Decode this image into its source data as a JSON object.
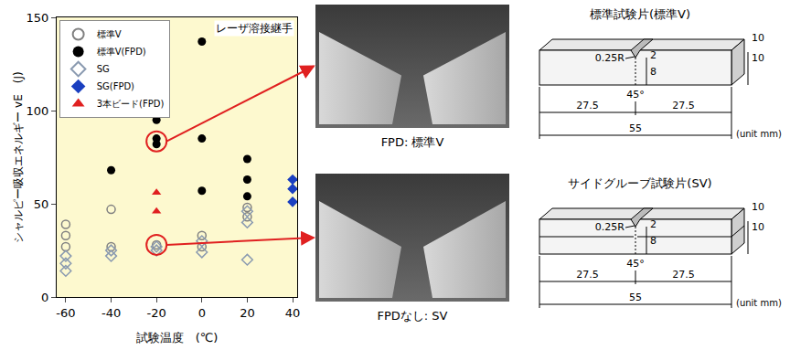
{
  "chart_data": {
    "type": "scatter",
    "x_label": "試験温度　(℃)",
    "y_label": "シャルピー吸収エネルギー vE",
    "y_unit": "(J)",
    "annotation": "レーザ溶接継手",
    "xlim": [
      -64,
      42
    ],
    "xticks": [
      -60,
      -40,
      -20,
      0,
      20,
      40
    ],
    "ylim": [
      0,
      150
    ],
    "yticks": [
      0,
      50,
      100,
      150
    ],
    "grid": false,
    "legend": "upper left",
    "series": [
      {
        "name": "標準V",
        "color": "#808080",
        "marker": "circle-open",
        "x": [
          -60,
          -60,
          -60,
          -40,
          -40,
          -20,
          0,
          0,
          20,
          20
        ],
        "values": [
          39,
          33,
          27,
          47,
          27,
          28,
          33,
          27,
          48,
          43
        ]
      },
      {
        "name": "標準V(FPD)",
        "color": "#000000",
        "marker": "circle",
        "x": [
          -40,
          -20,
          -20,
          -20,
          0,
          0,
          0,
          20,
          20,
          20
        ],
        "values": [
          68,
          95,
          85,
          82,
          137,
          85,
          57,
          74,
          63,
          54
        ]
      },
      {
        "name": "SG",
        "color": "#8a9ab0",
        "marker": "diamond-open",
        "x": [
          -60,
          -60,
          -60,
          -40,
          -40,
          -20,
          -20,
          0,
          0,
          20,
          20,
          20
        ],
        "values": [
          22,
          18,
          14,
          25,
          22,
          27,
          25,
          30,
          24,
          46,
          40,
          20
        ]
      },
      {
        "name": "SG(FPD)",
        "color": "#1a3fc0",
        "marker": "diamond",
        "x": [
          40,
          40,
          40
        ],
        "values": [
          63,
          58,
          51
        ]
      },
      {
        "name": "3本ビード(FPD)",
        "color": "#e02020",
        "marker": "triangle-up",
        "x": [
          -20,
          -20
        ],
        "values": [
          56,
          46
        ]
      }
    ]
  },
  "photos": [
    {
      "caption": "FPD: 標準V"
    },
    {
      "caption": "FPDなし: SV"
    }
  ],
  "specimens": [
    {
      "title": "標準試験片(標準V)",
      "notch_radius": "0.25R",
      "angle": "45°",
      "depth": 2,
      "ligament": 8,
      "height": 10,
      "width": 10,
      "half_lengths": [
        27.5,
        27.5
      ],
      "length": 55,
      "unit": "(unit mm)",
      "side_groove": false
    },
    {
      "title": "サイドグルーブ試験片(SV)",
      "notch_radius": "0.25R",
      "angle": "45°",
      "depth": 2,
      "ligament": 8,
      "height": 10,
      "width": 10,
      "half_lengths": [
        27.5,
        27.5
      ],
      "length": 55,
      "unit": "(unit mm)",
      "side_groove": true
    }
  ]
}
